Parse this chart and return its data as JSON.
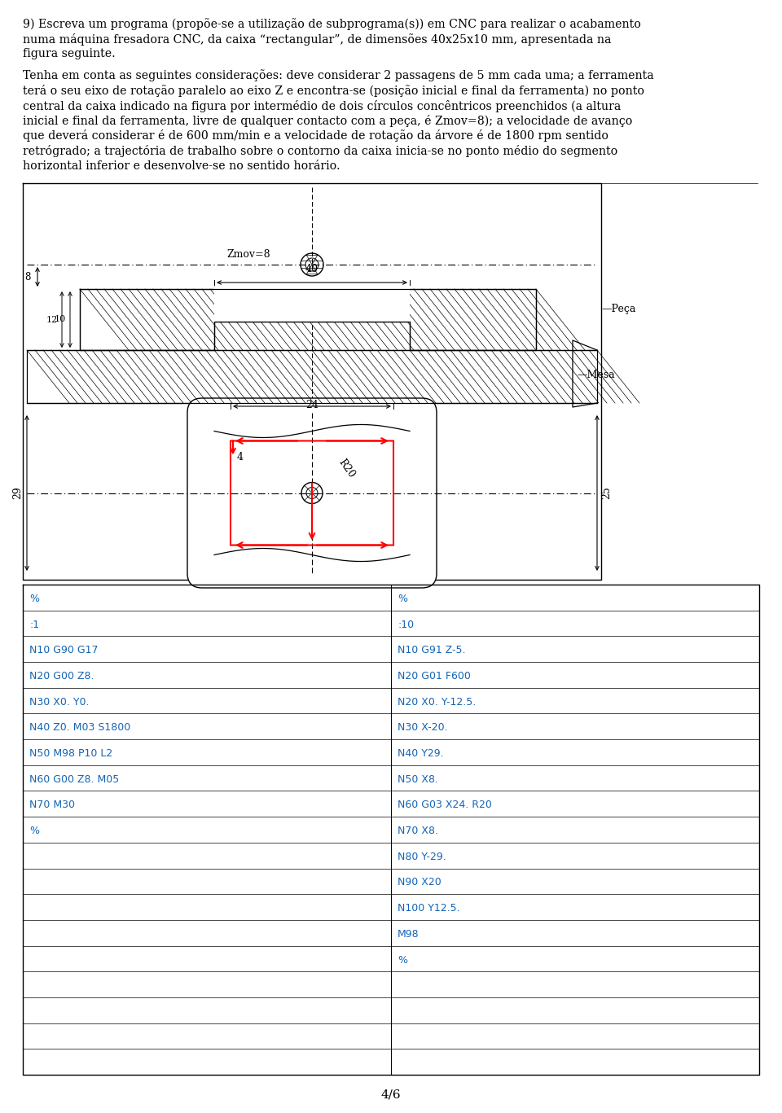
{
  "page_number": "4/6",
  "bg_color": "#ffffff",
  "text_color": "#000000",
  "blue_color": "#1464b4",
  "title_lines": [
    "9) Escreva um programa (propõe-se a utilização de subprograma(s)) em CNC para realizar o acabamento",
    "numa máquina fresadora CNC, da caixa “rectangular”, de dimensões 40x25x10 mm, apresentada na",
    "figura seguinte."
  ],
  "body_lines": [
    "Tenha em conta as seguintes considerações: deve considerar 2 passagens de 5 mm cada uma; a ferramenta",
    "terá o seu eixo de rotação paralelo ao eixo Z e encontra-se (posição inicial e final da ferramenta) no ponto",
    "central da caixa indicado na figura por intermédio de dois círculos concêntricos preenchidos (a altura",
    "inicial e final da ferramenta, livre de qualquer contacto com a peça, é Zmov=8); a velocidade de avanço",
    "que deverá considerar é de 600 mm/min e a velocidade de rotação da árvore é de 1800 rpm sentido",
    "retrógrado; a trajectória de trabalho sobre o contorno da caixa inicia-se no ponto médio do segmento",
    "horizontal inferior e desenvolve-se no sentido horário."
  ],
  "left_col_lines": [
    "%",
    ":1",
    "N10 G90 G17",
    "N20 G00 Z8.",
    "N30 X0. Y0.",
    "N40 Z0. M03 S1800",
    "N50 M98 P10 L2",
    "N60 G00 Z8. M05",
    "N70 M30",
    "%"
  ],
  "right_col_lines": [
    "%",
    ":10",
    "N10 G91 Z-5.",
    "N20 G01 F600",
    "N20 X0. Y-12.5.",
    "N30 X-20.",
    "N40 Y29.",
    "N50 X8.",
    "N60 G03 X24. R20",
    "N70 X8.",
    "N80 Y-29.",
    "N90 X20",
    "N100 Y12.5.",
    "M98",
    "%"
  ]
}
